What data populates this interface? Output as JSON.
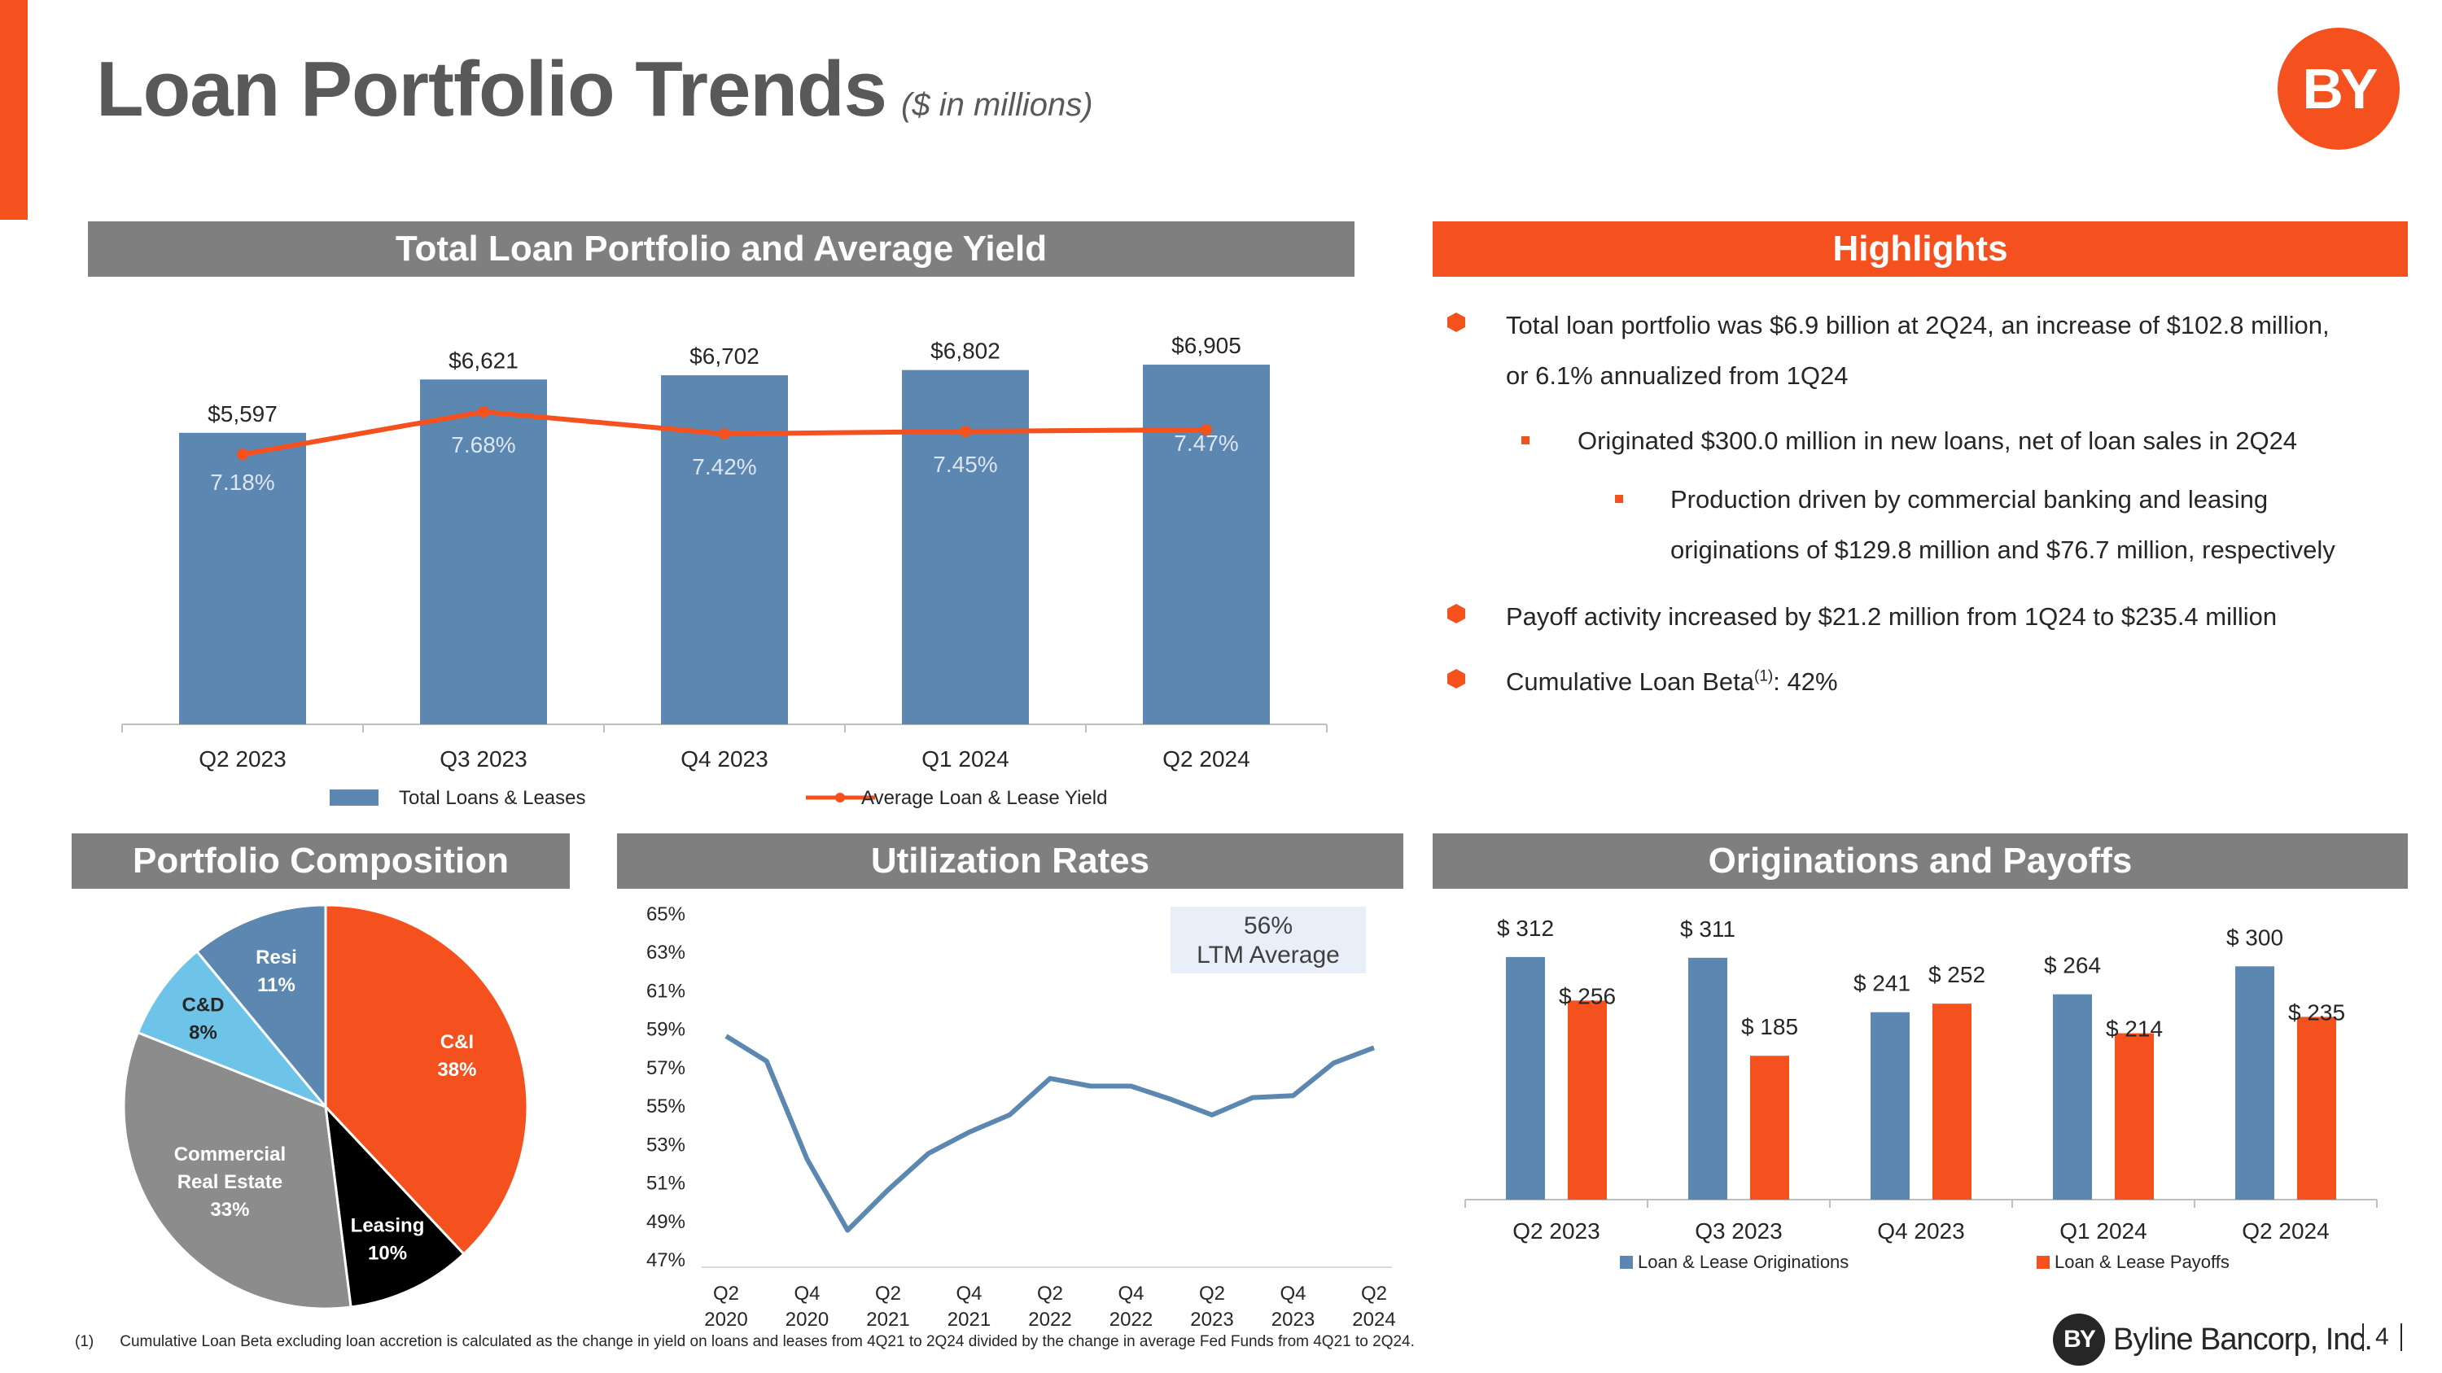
{
  "header": {
    "title": "Loan Portfolio Trends",
    "subtitle": "($ in millions)",
    "logo_text": "BY"
  },
  "sections": {
    "portfolio_title": "Total Loan Portfolio and Average Yield",
    "highlights_title": "Highlights",
    "composition_title": "Portfolio Composition",
    "utilization_title": "Utilization Rates",
    "originations_title": "Originations and Payoffs"
  },
  "highlights": [
    {
      "level": 1,
      "lines": [
        "Total loan portfolio was $6.9 billion at 2Q24, an increase of $102.8 million,",
        "or 6.1% annualized from 1Q24"
      ]
    },
    {
      "level": 2,
      "lines": [
        "Originated $300.0 million in new loans, net of loan sales in 2Q24"
      ]
    },
    {
      "level": 3,
      "lines": [
        "Production driven by commercial banking and leasing",
        "originations of $129.8 million and $76.7 million, respectively"
      ]
    },
    {
      "level": 1,
      "lines": [
        "Payoff activity increased by $21.2 million from 1Q24 to $235.4 million"
      ]
    },
    {
      "level": 1,
      "lines": [
        "Cumulative Loan Beta",
        "(1)",
        ": 42%"
      ]
    }
  ],
  "utilization": {
    "ltm_value": "56%",
    "ltm_label": "LTM Average"
  },
  "chart_data": [
    {
      "id": "portfolio",
      "type": "bar",
      "categories": [
        "Q2 2023",
        "Q3 2023",
        "Q4 2023",
        "Q1 2024",
        "Q2 2024"
      ],
      "series": [
        {
          "name": "Total Loans & Leases",
          "type": "bar",
          "values": [
            5597,
            6621,
            6702,
            6802,
            6905
          ],
          "labels": [
            "$5,597",
            "$6,621",
            "$6,702",
            "$6,802",
            "$6,905"
          ],
          "color": "#5B87B0"
        },
        {
          "name": "Average Loan & Lease Yield",
          "type": "line",
          "values": [
            7.18,
            7.68,
            7.42,
            7.45,
            7.47
          ],
          "labels": [
            "7.18%",
            "7.68%",
            "7.42%",
            "7.45%",
            "7.47%"
          ],
          "color": "#F4511E"
        }
      ],
      "legend": "bottom"
    },
    {
      "id": "composition",
      "type": "pie",
      "slices": [
        {
          "label": "C&I",
          "value": 38,
          "pct": "38%",
          "color": "#F4511E"
        },
        {
          "label": "Leasing",
          "value": 10,
          "pct": "10%",
          "color": "#000000"
        },
        {
          "label": "Commercial Real Estate",
          "value": 33,
          "pct": "33%",
          "color": "#8C8C8C"
        },
        {
          "label": "C&D",
          "value": 8,
          "pct": "8%",
          "color": "#6EC4E8"
        },
        {
          "label": "Resi",
          "value": 11,
          "pct": "11%",
          "color": "#5B87B0"
        }
      ]
    },
    {
      "id": "utilization",
      "type": "line",
      "y_ticks": [
        "65%",
        "63%",
        "61%",
        "59%",
        "57%",
        "55%",
        "53%",
        "51%",
        "49%",
        "47%"
      ],
      "ylim": [
        47,
        65
      ],
      "x_tick_labels": [
        [
          "Q2",
          "2020"
        ],
        [
          "Q4",
          "2020"
        ],
        [
          "Q2",
          "2021"
        ],
        [
          "Q4",
          "2021"
        ],
        [
          "Q2",
          "2022"
        ],
        [
          "Q4",
          "2022"
        ],
        [
          "Q2",
          "2023"
        ],
        [
          "Q4",
          "2023"
        ],
        [
          "Q2",
          "2024"
        ]
      ],
      "values": [
        58.6,
        57.3,
        52.2,
        48.5,
        50.6,
        52.5,
        53.6,
        54.5,
        56.4,
        56.0,
        56.0,
        55.3,
        54.5,
        55.4,
        55.5,
        57.2,
        58.0
      ],
      "color": "#5B87B0"
    },
    {
      "id": "originations",
      "type": "bar",
      "categories": [
        "Q2 2023",
        "Q3 2023",
        "Q4 2023",
        "Q1 2024",
        "Q2 2024"
      ],
      "series": [
        {
          "name": "Loan & Lease Originations",
          "values": [
            312,
            311,
            241,
            264,
            300
          ],
          "labels": [
            "$ 312",
            "$ 311",
            "$ 241",
            "$ 264",
            "$ 300"
          ],
          "color": "#5B87B0"
        },
        {
          "name": "Loan & Lease Payoffs",
          "values": [
            256,
            185,
            252,
            214,
            235
          ],
          "labels": [
            "$ 256",
            "$ 185",
            "$ 252",
            "$ 214",
            "$ 235"
          ],
          "color": "#F4511E"
        }
      ],
      "legend": "bottom"
    }
  ],
  "footer": {
    "footnote_num": "(1)",
    "footnote_text": "Cumulative Loan Beta excluding loan accretion is calculated as the change in yield on loans and leases from 4Q21 to 2Q24 divided by the change in average Fed Funds from 4Q21 to 2Q24.",
    "brand_logo_text": "BY",
    "brand_name": "Byline Bancorp, Inc.",
    "page_number": "4"
  }
}
